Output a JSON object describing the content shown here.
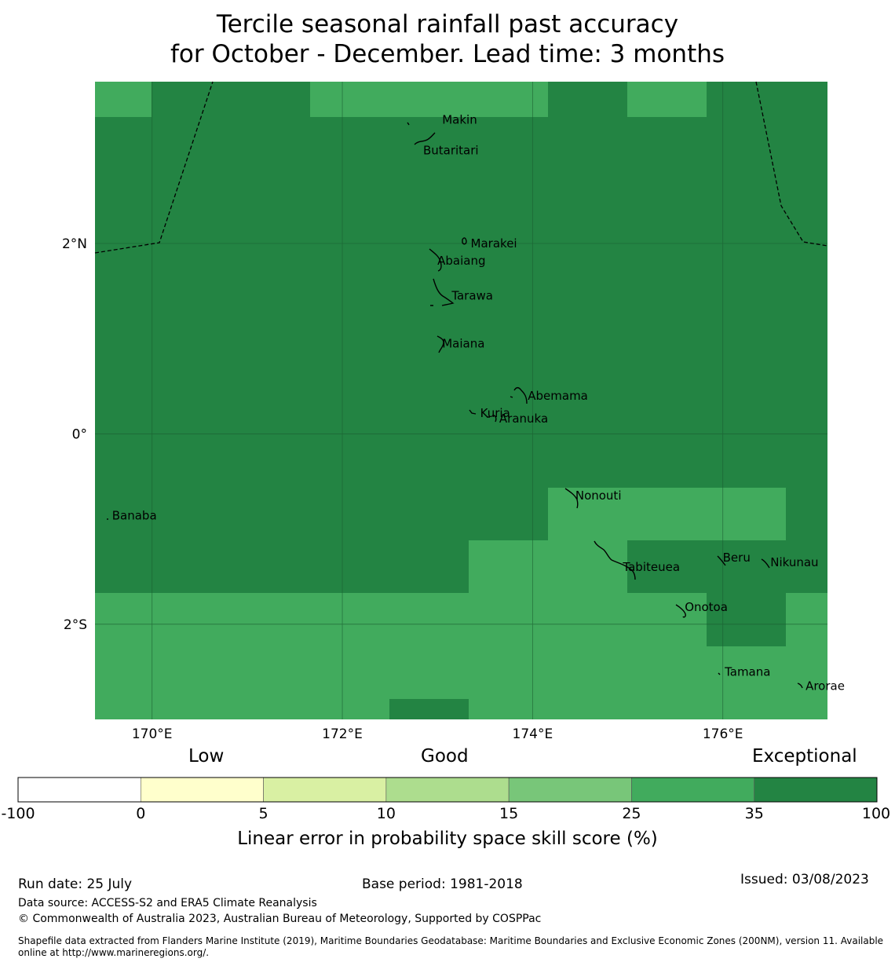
{
  "title": {
    "line1": "Tercile seasonal rainfall past accuracy",
    "line2": "for October - December. Lead time: 3 months"
  },
  "map": {
    "lon_range": [
      169.4,
      177.1
    ],
    "lat_range": [
      -3.0,
      3.7
    ],
    "lon_ticks": [
      {
        "value": 170,
        "label": "170°E"
      },
      {
        "value": 172,
        "label": "172°E"
      },
      {
        "value": 174,
        "label": "174°E"
      },
      {
        "value": 176,
        "label": "176°E"
      }
    ],
    "lat_ticks": [
      {
        "value": 2,
        "label": "2°N"
      },
      {
        "value": 0,
        "label": "0°"
      },
      {
        "value": -2,
        "label": "2°S"
      }
    ],
    "places": [
      {
        "name": "Makin",
        "lon": 173.0,
        "lat": 3.3
      },
      {
        "name": "Butaritari",
        "lon": 172.8,
        "lat": 2.98
      },
      {
        "name": "Marakei",
        "lon": 173.3,
        "lat": 2.0
      },
      {
        "name": "Abaiang",
        "lon": 172.95,
        "lat": 1.82
      },
      {
        "name": "Tarawa",
        "lon": 173.1,
        "lat": 1.45
      },
      {
        "name": "Maiana",
        "lon": 173.0,
        "lat": 0.95
      },
      {
        "name": "Abemama",
        "lon": 173.9,
        "lat": 0.4
      },
      {
        "name": "Kuria",
        "lon": 173.4,
        "lat": 0.22
      },
      {
        "name": "Aranuka",
        "lon": 173.6,
        "lat": 0.16
      },
      {
        "name": "Nonouti",
        "lon": 174.4,
        "lat": -0.65
      },
      {
        "name": "Banaba",
        "lon": 169.53,
        "lat": -0.86
      },
      {
        "name": "Tabiteuea",
        "lon": 174.9,
        "lat": -1.4
      },
      {
        "name": "Beru",
        "lon": 175.95,
        "lat": -1.3
      },
      {
        "name": "Nikunau",
        "lon": 176.45,
        "lat": -1.35
      },
      {
        "name": "Onotoa",
        "lon": 175.55,
        "lat": -1.82
      },
      {
        "name": "Tamana",
        "lon": 175.97,
        "lat": -2.5
      },
      {
        "name": "Arorae",
        "lon": 176.82,
        "lat": -2.65
      }
    ]
  },
  "colorbar": {
    "category_labels": {
      "low": "Low",
      "good": "Good",
      "exceptional": "Exceptional"
    },
    "bins": [
      {
        "from": -100,
        "to": 0,
        "color": "#ffffff"
      },
      {
        "from": 0,
        "to": 5,
        "color": "#ffffcc"
      },
      {
        "from": 5,
        "to": 10,
        "color": "#d9f0a3"
      },
      {
        "from": 10,
        "to": 15,
        "color": "#addd8e"
      },
      {
        "from": 15,
        "to": 25,
        "color": "#78c679"
      },
      {
        "from": 25,
        "to": 35,
        "color": "#41ab5d"
      },
      {
        "from": 35,
        "to": 100,
        "color": "#238443"
      }
    ],
    "tick_labels": [
      "-100",
      "0",
      "5",
      "10",
      "15",
      "25",
      "35",
      "100"
    ],
    "label": "Linear error in probability space skill score (%)"
  },
  "footer": {
    "run_date": "Run date: 25 July",
    "base_period": "Base period: 1981-2018",
    "issued": "Issued: 03/08/2023",
    "data_source": "Data source: ACCESS-S2 and ERA5 Climate Reanalysis",
    "copyright": "© Commonwealth of Australia 2023, Australian Bureau of Meteorology, Supported by COSPPac",
    "shapefile_note": "Shapefile data extracted from Flanders Marine Institute (2019), Maritime Boundaries Geodatabase: Maritime Boundaries and Exclusive Economic Zones (200NM), version 11. Available online at http://www.marineregions.org/."
  }
}
